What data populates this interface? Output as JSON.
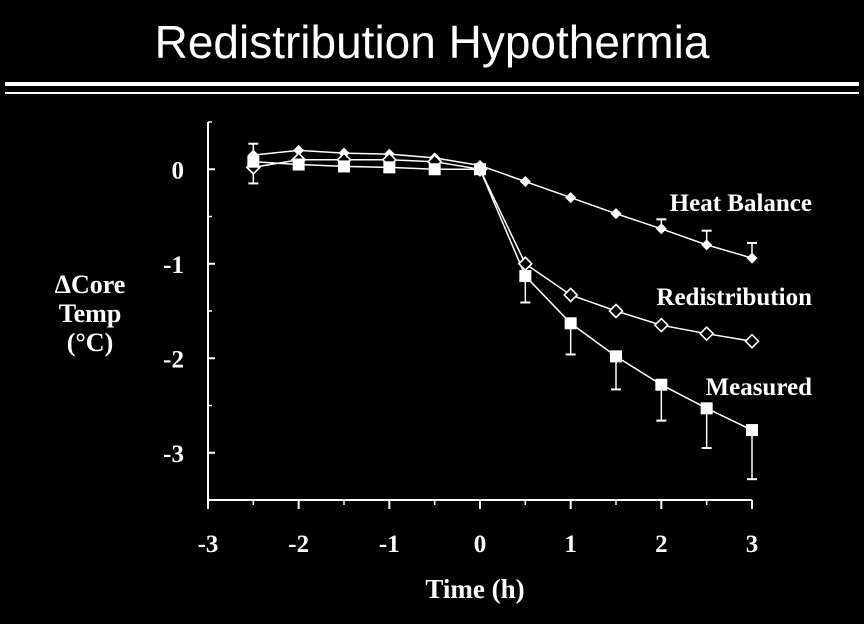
{
  "slide": {
    "title": "Redistribution Hypothermia"
  },
  "chart_data": {
    "type": "line",
    "ylabel": [
      "ΔCore",
      "Temp",
      "(°C)"
    ],
    "xlabel": "Time (h)",
    "xlim": [
      -3,
      3
    ],
    "ylim": [
      -3.5,
      0.5
    ],
    "xticks": [
      -3,
      -2,
      -1,
      0,
      1,
      2,
      3
    ],
    "yticks": [
      0,
      -1,
      -2,
      -3
    ],
    "grid": false,
    "series": [
      {
        "name": "Heat Balance",
        "marker": "filled-diamond",
        "x": [
          -2.5,
          -2,
          -1.5,
          -1,
          -0.5,
          0,
          0.5,
          1,
          1.5,
          2,
          2.5,
          3
        ],
        "y": [
          0.15,
          0.2,
          0.17,
          0.16,
          0.12,
          0.04,
          -0.13,
          -0.3,
          -0.47,
          -0.63,
          -0.8,
          -0.94
        ],
        "error_up": [
          0.12,
          0,
          0,
          0,
          0,
          0,
          0,
          0,
          0,
          0.1,
          0.15,
          0.16
        ],
        "error_down": [
          0,
          0,
          0,
          0,
          0,
          0,
          0,
          0,
          0,
          0,
          0,
          0
        ]
      },
      {
        "name": "Redistribution",
        "marker": "open-diamond",
        "x": [
          -2.5,
          -2,
          -1.5,
          -1,
          -0.5,
          0,
          0.5,
          1,
          1.5,
          2,
          2.5,
          3
        ],
        "y": [
          0.02,
          0.1,
          0.1,
          0.1,
          0.08,
          0.0,
          -1.0,
          -1.33,
          -1.5,
          -1.65,
          -1.74,
          -1.82
        ],
        "error_up": [
          0,
          0,
          0,
          0,
          0,
          0,
          0,
          0,
          0,
          0,
          0,
          0
        ],
        "error_down": [
          0.17,
          0,
          0,
          0,
          0,
          0,
          0,
          0,
          0,
          0,
          0,
          0
        ]
      },
      {
        "name": "Measured",
        "marker": "filled-square",
        "x": [
          -2.5,
          -2,
          -1.5,
          -1,
          -0.5,
          0,
          0.5,
          1,
          1.5,
          2,
          2.5,
          3
        ],
        "y": [
          0.08,
          0.05,
          0.03,
          0.02,
          0.0,
          0.0,
          -1.13,
          -1.63,
          -1.98,
          -2.28,
          -2.53,
          -2.76
        ],
        "error_up": [
          0,
          0,
          0,
          0,
          0,
          0,
          0,
          0,
          0,
          0,
          0,
          0
        ],
        "error_down": [
          0,
          0,
          0,
          0,
          0,
          0,
          0.28,
          0.33,
          0.35,
          0.38,
          0.42,
          0.52
        ]
      }
    ]
  }
}
